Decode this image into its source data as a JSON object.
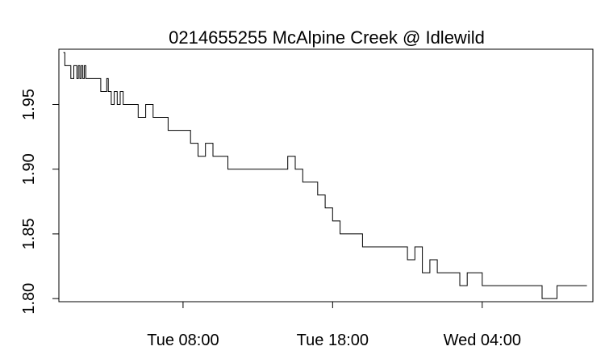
{
  "chart_data": {
    "type": "line",
    "title": "0214655255 McAlpine Creek @ Idlewild",
    "xlabel": "",
    "ylabel": "",
    "x_unit": "hours",
    "x_ticks": [
      {
        "label": "Tue 08:00",
        "value": 8
      },
      {
        "label": "Tue 18:00",
        "value": 18
      },
      {
        "label": "Wed 04:00",
        "value": 28
      }
    ],
    "y_ticks": [
      {
        "label": "1.80",
        "value": 1.8
      },
      {
        "label": "1.85",
        "value": 1.85
      },
      {
        "label": "1.90",
        "value": 1.9
      },
      {
        "label": "1.95",
        "value": 1.95
      }
    ],
    "xlim": [
      -0.3,
      35.4
    ],
    "ylim": [
      1.7976,
      1.9927
    ],
    "grid": false,
    "series": [
      {
        "name": "",
        "x": [
          0.0,
          0.1,
          0.2,
          0.5,
          0.7,
          0.9,
          1.0,
          1.1,
          1.2,
          1.3,
          1.4,
          1.5,
          1.6,
          1.7,
          1.8,
          1.9,
          2.0,
          2.1,
          2.2,
          2.4,
          2.5,
          2.7,
          2.9,
          3.0,
          3.2,
          3.4,
          3.6,
          3.8,
          4.0,
          4.2,
          4.5,
          5.0,
          5.5,
          6.0,
          7.0,
          8.0,
          8.5,
          9.0,
          9.5,
          10.0,
          10.5,
          11.0,
          11.5,
          12.0,
          13.0,
          14.0,
          15.0,
          15.5,
          16.0,
          16.5,
          17.0,
          17.5,
          18.0,
          18.5,
          19.0,
          19.5,
          20.0,
          21.0,
          22.0,
          23.0,
          23.5,
          24.0,
          24.5,
          25.0,
          25.5,
          26.0,
          26.5,
          27.0,
          28.0,
          29.0,
          30.0,
          31.0,
          32.0,
          33.0,
          34.0,
          35.0
        ],
        "y": [
          1.99,
          1.98,
          1.98,
          1.97,
          1.98,
          1.97,
          1.98,
          1.97,
          1.98,
          1.97,
          1.98,
          1.97,
          1.97,
          1.97,
          1.97,
          1.97,
          1.97,
          1.97,
          1.97,
          1.97,
          1.96,
          1.96,
          1.97,
          1.96,
          1.95,
          1.96,
          1.95,
          1.96,
          1.95,
          1.95,
          1.95,
          1.94,
          1.95,
          1.94,
          1.93,
          1.93,
          1.92,
          1.91,
          1.92,
          1.91,
          1.91,
          1.9,
          1.9,
          1.9,
          1.9,
          1.9,
          1.91,
          1.9,
          1.89,
          1.89,
          1.88,
          1.87,
          1.86,
          1.85,
          1.85,
          1.85,
          1.84,
          1.84,
          1.84,
          1.83,
          1.84,
          1.82,
          1.83,
          1.82,
          1.82,
          1.82,
          1.81,
          1.82,
          1.81,
          1.81,
          1.81,
          1.81,
          1.8,
          1.81,
          1.81,
          1.81
        ]
      }
    ]
  }
}
